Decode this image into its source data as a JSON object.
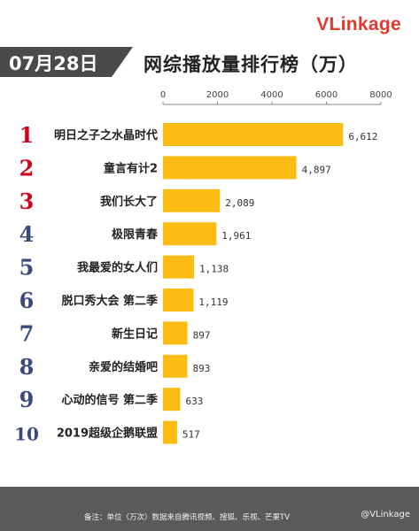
{
  "brand": {
    "logo_text": "VLinkage"
  },
  "header": {
    "date_label": "07月28日"
  },
  "footer": {
    "note": "备注：单位（万次）数据来自腾讯视频、搜狐、乐视、芒果TV",
    "handle": "@VLinkage"
  },
  "colors": {
    "bar": "#fbbd14",
    "rank": "#d0021b",
    "rank_dark": "#3b4a7a",
    "badge": "#4a4a4a"
  },
  "chart_data": {
    "type": "bar",
    "orientation": "horizontal",
    "title": "网综播放量排行榜（万）",
    "xlim": [
      0,
      8000
    ],
    "xticks": [
      0,
      2000,
      4000,
      6000,
      8000
    ],
    "ranks": [
      "1",
      "2",
      "3",
      "4",
      "5",
      "6",
      "7",
      "8",
      "9",
      "10"
    ],
    "categories": [
      "明日之子之水晶时代",
      "童言有计2",
      "我们长大了",
      "极限青春",
      "我最爱的女人们",
      "脱口秀大会 第二季",
      "新生日记",
      "亲爱的结婚吧",
      "心动的信号 第二季",
      "2019超级企鹅联盟"
    ],
    "values": [
      6612,
      4897,
      2089,
      1961,
      1138,
      1119,
      897,
      893,
      633,
      517
    ],
    "value_labels": [
      "6,612",
      "4,897",
      "2,089",
      "1,961",
      "1,138",
      "1,119",
      "897",
      "893",
      "633",
      "517"
    ],
    "grid": false,
    "legend": "none"
  }
}
